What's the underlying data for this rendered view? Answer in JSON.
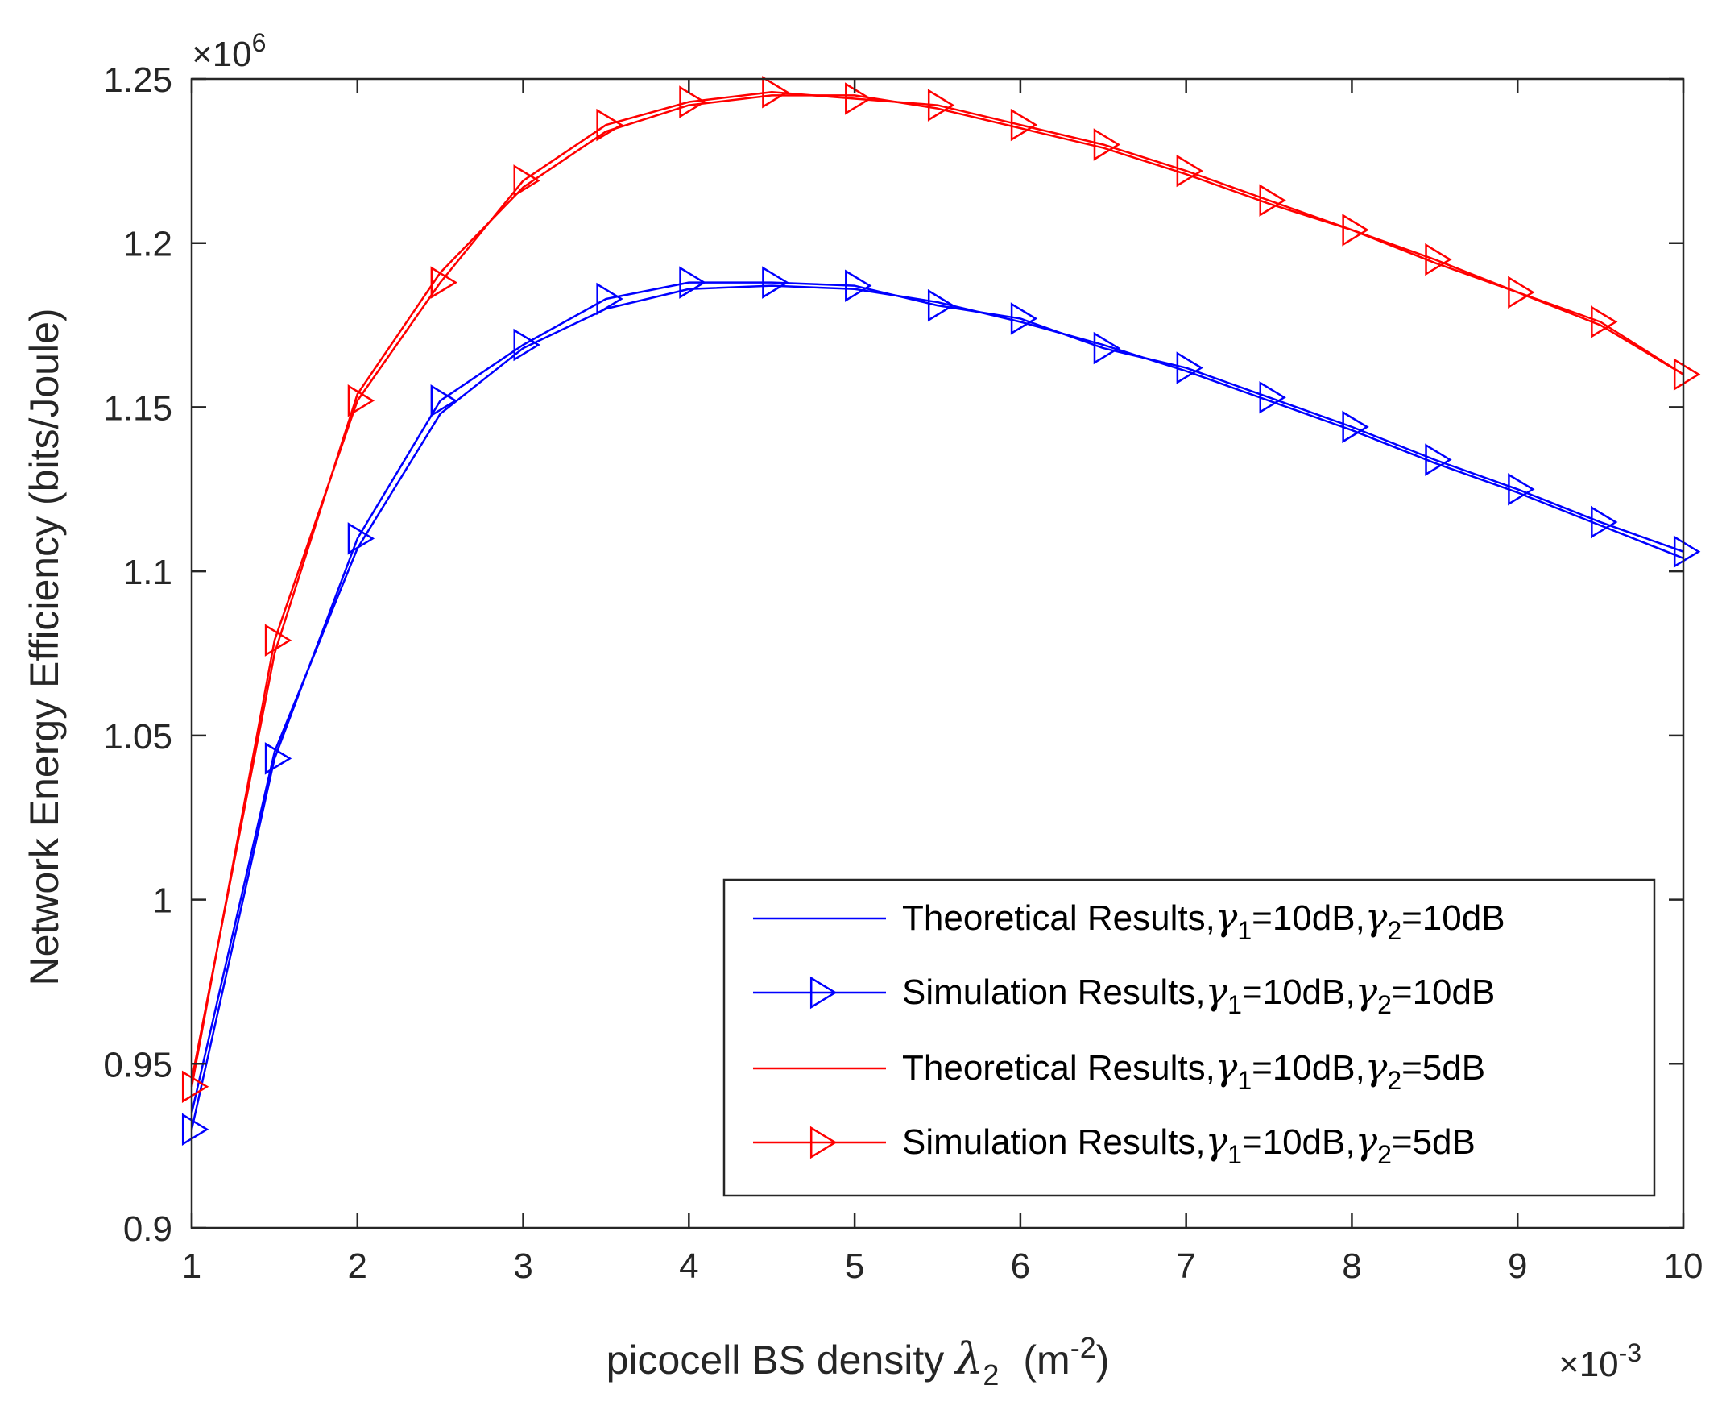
{
  "chart_data": {
    "type": "line",
    "title": "",
    "xlabel": "picocell BS density λ₂  (m⁻²)",
    "xlabel_parts": {
      "text": "picocell BS density ",
      "symbol": "λ",
      "symbol_sub": "2",
      "unit_open": "(m",
      "unit_sup": "-2",
      "unit_close": ")"
    },
    "ylabel": "Network Energy Efficiency (bits/Joule)",
    "x_exponent": {
      "base": "×10",
      "power": "-3"
    },
    "y_exponent": {
      "base": "×10",
      "power": "6"
    },
    "xlim": [
      1,
      10
    ],
    "ylim": [
      0.9,
      1.25
    ],
    "x_ticks": [
      1,
      2,
      3,
      4,
      5,
      6,
      7,
      8,
      9,
      10
    ],
    "x_tick_labels": [
      "1",
      "2",
      "3",
      "4",
      "5",
      "6",
      "7",
      "8",
      "9",
      "10"
    ],
    "y_ticks": [
      0.9,
      0.95,
      1.0,
      1.05,
      1.1,
      1.15,
      1.2,
      1.25
    ],
    "y_tick_labels": [
      "0.9",
      "0.95",
      "1",
      "1.05",
      "1.1",
      "1.15",
      "1.2",
      "1.25"
    ],
    "grid": false,
    "legend_position": "bottom-right",
    "x": [
      1,
      1.5,
      2,
      2.5,
      3,
      3.5,
      4,
      4.5,
      5,
      5.5,
      6,
      6.5,
      7,
      7.5,
      8,
      8.5,
      9,
      9.5,
      10
    ],
    "series": [
      {
        "name": "Theoretical Results, γ1=10dB, γ2=10dB",
        "color": "#0000ff",
        "marker": "none",
        "values": [
          0.935,
          1.045,
          1.107,
          1.148,
          1.168,
          1.18,
          1.186,
          1.187,
          1.186,
          1.182,
          1.176,
          1.169,
          1.161,
          1.152,
          1.143,
          1.133,
          1.124,
          1.114,
          1.104
        ]
      },
      {
        "name": "Simulation Results, γ1=10dB, γ2=10dB",
        "color": "#0000ff",
        "marker": "triangle-right",
        "values": [
          0.93,
          1.043,
          1.11,
          1.152,
          1.169,
          1.183,
          1.188,
          1.188,
          1.187,
          1.181,
          1.177,
          1.168,
          1.162,
          1.153,
          1.144,
          1.134,
          1.125,
          1.115,
          1.106
        ]
      },
      {
        "name": "Theoretical Results, γ1=10dB, γ2=5dB",
        "color": "#ff0000",
        "marker": "none",
        "values": [
          0.945,
          1.075,
          1.154,
          1.191,
          1.217,
          1.234,
          1.242,
          1.245,
          1.245,
          1.241,
          1.235,
          1.229,
          1.221,
          1.212,
          1.204,
          1.194,
          1.185,
          1.175,
          1.16
        ]
      },
      {
        "name": "Simulation Results, γ1=10dB, γ2=5dB",
        "color": "#ff0000",
        "marker": "triangle-right",
        "values": [
          0.943,
          1.079,
          1.152,
          1.188,
          1.219,
          1.236,
          1.243,
          1.246,
          1.244,
          1.242,
          1.236,
          1.23,
          1.222,
          1.213,
          1.204,
          1.195,
          1.185,
          1.176,
          1.16
        ]
      }
    ],
    "legend": [
      {
        "label": "Theoretical Results,",
        "s1": "γ",
        "s1sub": "1",
        "mid": "=10dB,",
        "s2": "γ",
        "s2sub": "2",
        "end": "=10dB",
        "color": "#0000ff",
        "marker": "none"
      },
      {
        "label": "Simulation Results,",
        "s1": "γ",
        "s1sub": "1",
        "mid": "=10dB,",
        "s2": "γ",
        "s2sub": "2",
        "end": "=10dB",
        "color": "#0000ff",
        "marker": "triangle-right"
      },
      {
        "label": "Theoretical Results,",
        "s1": "γ",
        "s1sub": "1",
        "mid": "=10dB,",
        "s2": "γ",
        "s2sub": "2",
        "end": "=5dB",
        "color": "#ff0000",
        "marker": "none"
      },
      {
        "label": "Simulation Results,",
        "s1": "γ",
        "s1sub": "1",
        "mid": "=10dB,",
        "s2": "γ",
        "s2sub": "2",
        "end": "=5dB",
        "color": "#ff0000",
        "marker": "triangle-right"
      }
    ]
  }
}
